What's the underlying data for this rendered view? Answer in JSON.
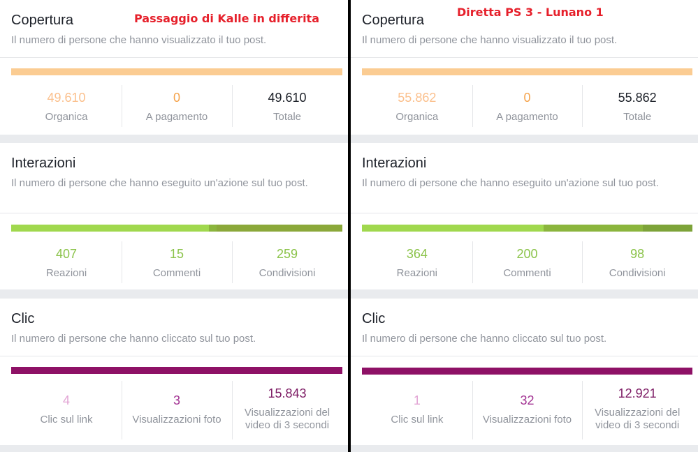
{
  "left": {
    "overlay": "Passaggio di Kalle in differita",
    "copertura": {
      "title": "Copertura",
      "desc": "Il numero di persone che hanno visualizzato il tuo post.",
      "organica": "49.610",
      "organica_label": "Organica",
      "pagamento": "0",
      "pagamento_label": "A pagamento",
      "totale": "49.610",
      "totale_label": "Totale"
    },
    "interazioni": {
      "title": "Interazioni",
      "desc": "Il numero di persone che hanno eseguito un'azione sul tuo post.",
      "reazioni": "407",
      "reazioni_label": "Reazioni",
      "commenti": "15",
      "commenti_label": "Commenti",
      "condivisioni": "259",
      "condivisioni_label": "Condivisioni"
    },
    "clic": {
      "title": "Clic",
      "desc": "Il numero di persone che hanno cliccato sul tuo post.",
      "link": "4",
      "link_label": "Clic sul link",
      "foto": "3",
      "foto_label": "Visualizzazioni foto",
      "video": "15.843",
      "video_label": "Visualizzazioni del video di 3 secondi"
    }
  },
  "right": {
    "overlay": "Diretta PS 3 - Lunano 1",
    "copertura": {
      "title": "Copertura",
      "desc": "Il numero di persone che hanno visualizzato il tuo post.",
      "organica": "55.862",
      "organica_label": "Organica",
      "pagamento": "0",
      "pagamento_label": "A pagamento",
      "totale": "55.862",
      "totale_label": "Totale"
    },
    "interazioni": {
      "title": "Interazioni",
      "desc": "Il numero di persone che hanno eseguito un'azione sul tuo post.",
      "reazioni": "364",
      "reazioni_label": "Reazioni",
      "commenti": "200",
      "commenti_label": "Commenti",
      "condivisioni": "98",
      "condivisioni_label": "Condivisioni"
    },
    "clic": {
      "title": "Clic",
      "desc": "Il numero di persone che hanno cliccato sul tuo post.",
      "link": "1",
      "link_label": "Clic sul link",
      "foto": "32",
      "foto_label": "Visualizzazioni foto",
      "video": "12.921",
      "video_label": "Visualizzazioni del video di 3 secondi"
    }
  },
  "colors": {
    "copertura_bar": "#fbcc92",
    "organica": "#fbc08d",
    "pagamento": "#f5a34b",
    "totale": "#1d2129",
    "interazioni_bar_1": "#a0d84e",
    "interazioni_bar_2": "#8bb53d",
    "interazioni_bar_3": "#7da339",
    "interazioni_val": "#8bc34a",
    "clic_bar": "#8e1166",
    "link_val": "#e2a4d4",
    "foto_val": "#a23292",
    "video_val": "#7c1a63"
  }
}
